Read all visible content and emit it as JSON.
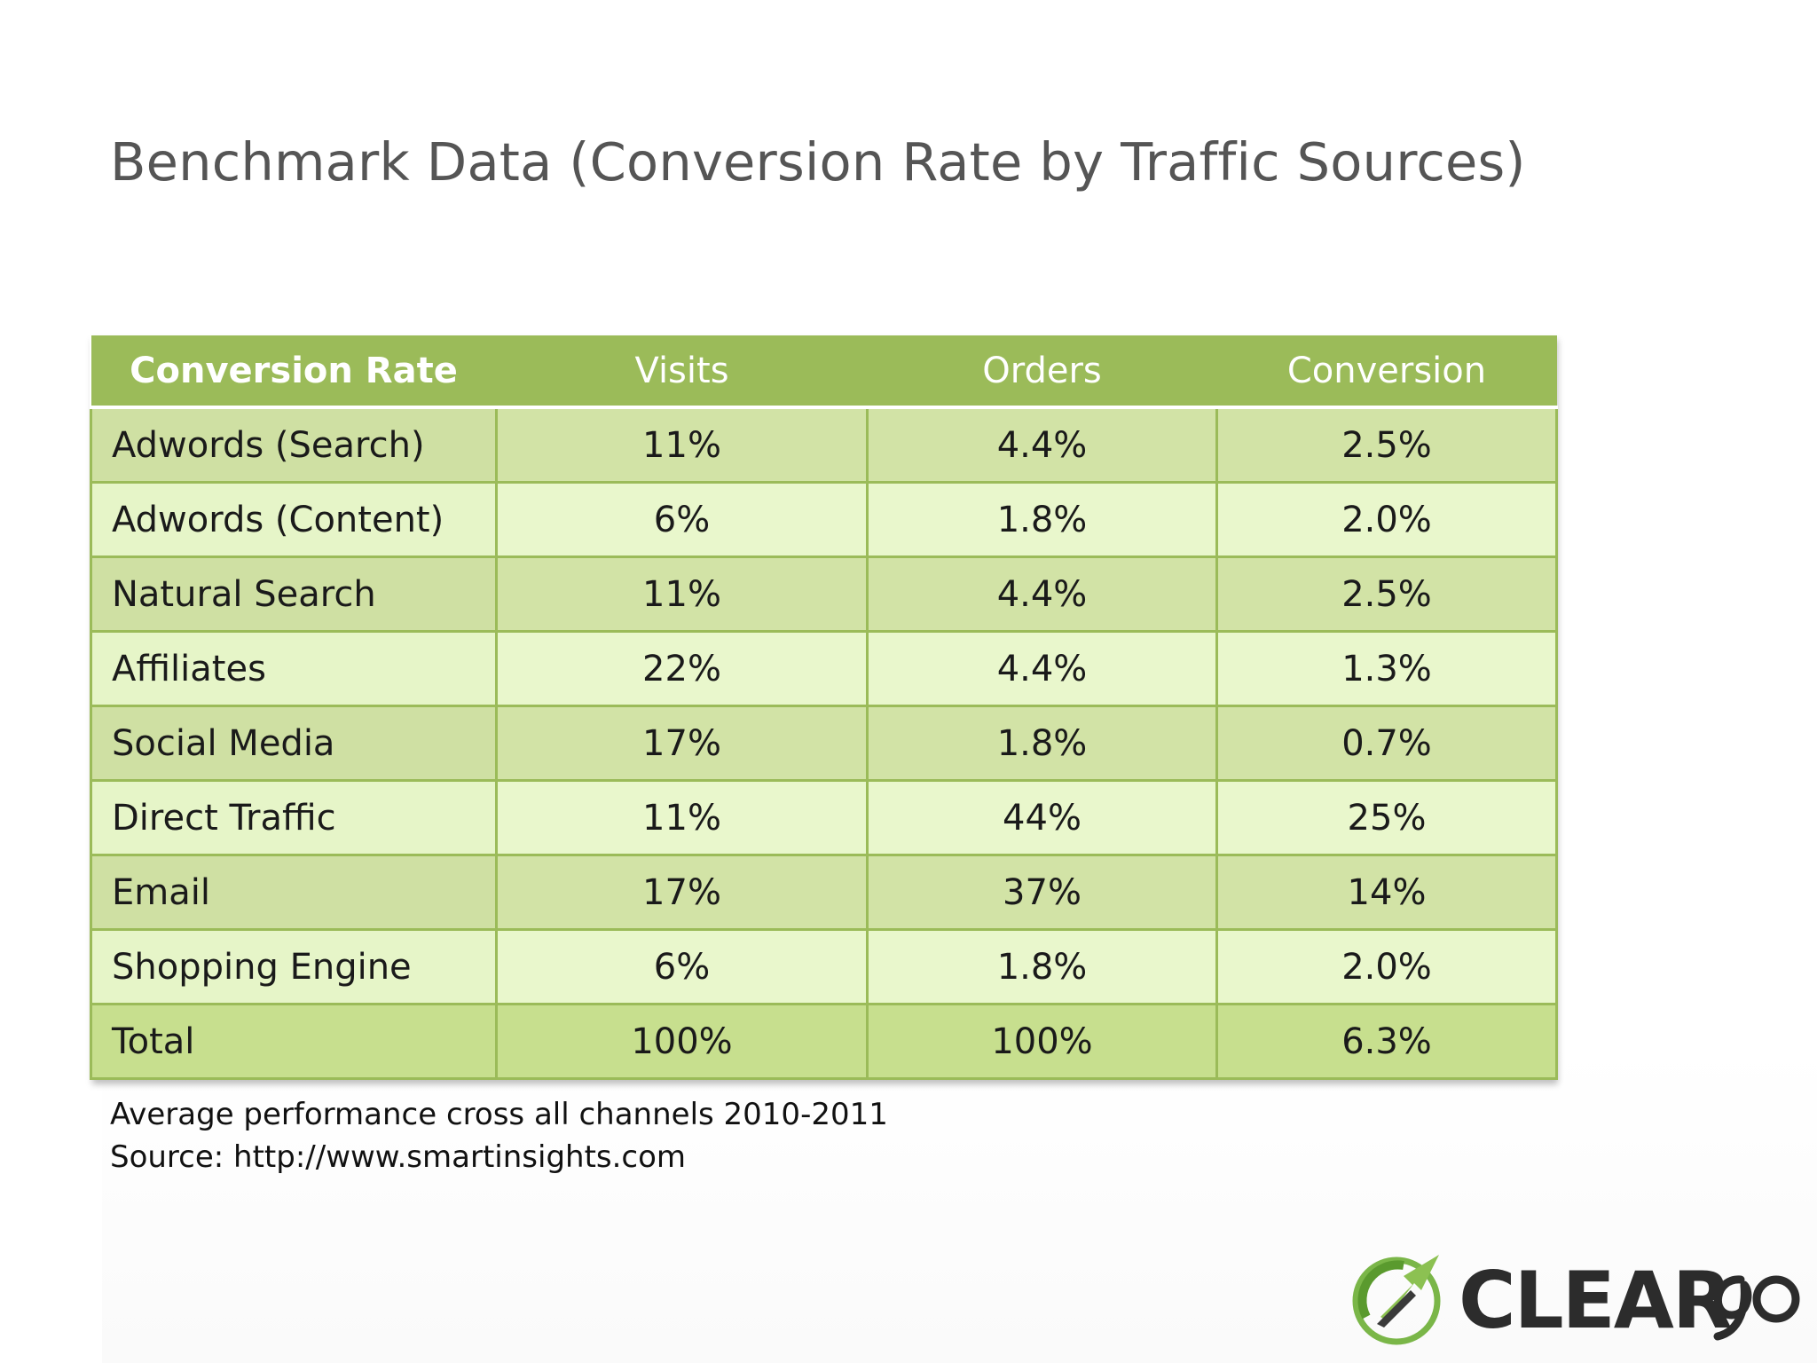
{
  "title": "Benchmark Data (Conversion Rate by Traffic Sources)",
  "table": {
    "headers": [
      "Conversion Rate",
      "Visits",
      "Orders",
      "Conversion"
    ],
    "rows": [
      {
        "label": "Adwords (Search)",
        "visits": "11%",
        "orders": "4.4%",
        "conversion": "2.5%"
      },
      {
        "label": "Adwords (Content)",
        "visits": "6%",
        "orders": "1.8%",
        "conversion": "2.0%"
      },
      {
        "label": "Natural Search",
        "visits": "11%",
        "orders": "4.4%",
        "conversion": "2.5%"
      },
      {
        "label": "Affiliates",
        "visits": "22%",
        "orders": "4.4%",
        "conversion": "1.3%"
      },
      {
        "label": "Social Media",
        "visits": "17%",
        "orders": "1.8%",
        "conversion": "0.7%"
      },
      {
        "label": "Direct Traffic",
        "visits": "11%",
        "orders": "44%",
        "conversion": "25%"
      },
      {
        "label": "Email",
        "visits": "17%",
        "orders": "37%",
        "conversion": "14%"
      },
      {
        "label": "Shopping Engine",
        "visits": "6%",
        "orders": "1.8%",
        "conversion": "2.0%"
      },
      {
        "label": "Total",
        "visits": "100%",
        "orders": "100%",
        "conversion": "6.3%"
      }
    ]
  },
  "footnotes": [
    "Average performance cross all channels 2010-2011",
    "Source: http://www.smartinsights.com"
  ],
  "logo": {
    "text": "CLEAR",
    "suffix": "go",
    "icon": "cleargo-arrow-logo-icon",
    "colors": {
      "green": "#7ab648",
      "dark": "#2c2c2c"
    }
  },
  "colors": {
    "header": "#9bbb59",
    "row_dark": "#d2e3a6",
    "row_light": "#e9f7cc",
    "title": "#555555"
  }
}
